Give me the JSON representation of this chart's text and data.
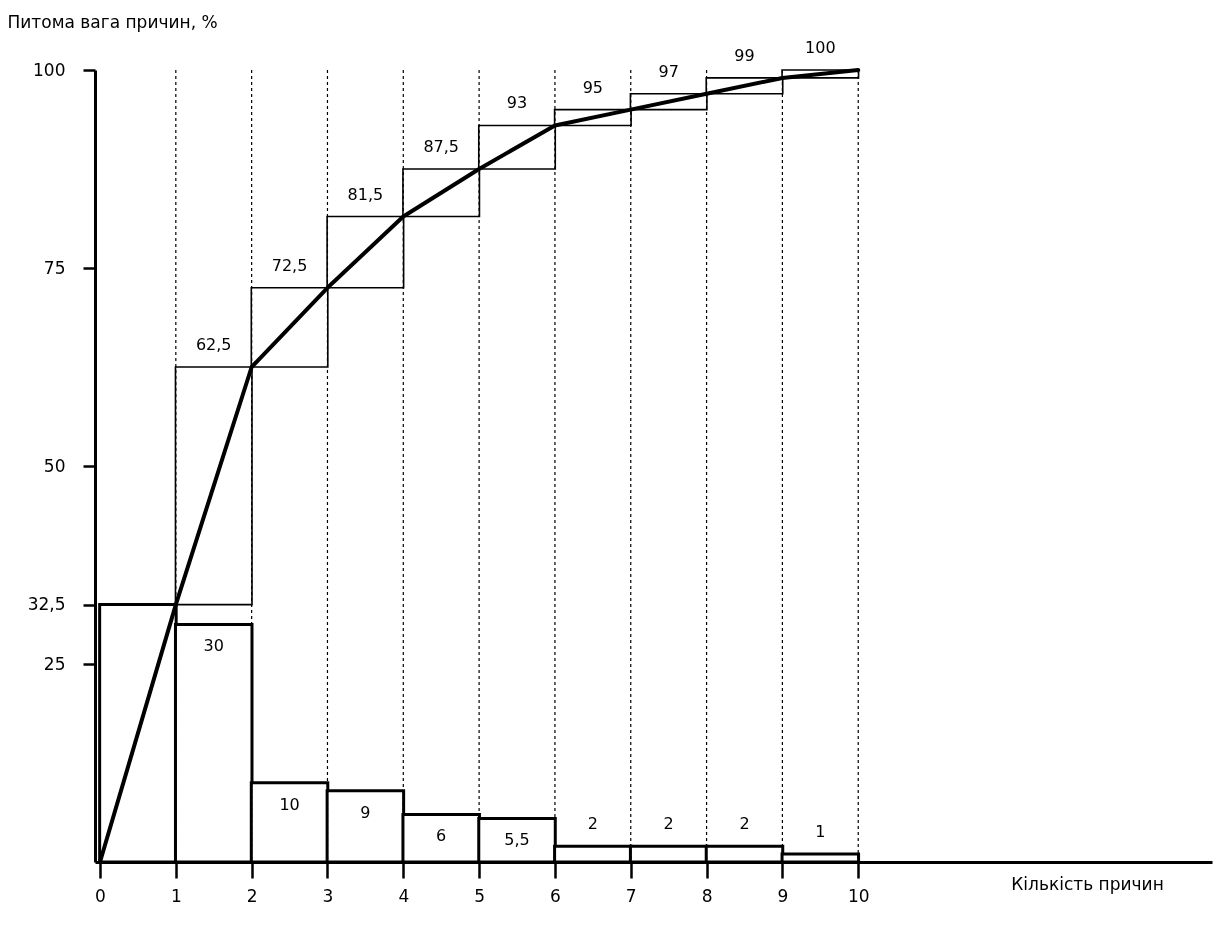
{
  "chart_data": {
    "type": "bar",
    "xlabel": "Кількість причин",
    "ylabel": "Питома вага причин, %",
    "xlim": [
      0,
      14.6
    ],
    "xticks": [
      0,
      1,
      2,
      3,
      4,
      5,
      6,
      7,
      8,
      9,
      10
    ],
    "ylim": [
      0,
      100
    ],
    "yticks": [
      25,
      {
        "value": 32.5,
        "label": "32,5"
      },
      50,
      75,
      100
    ],
    "grid": false,
    "series": [
      {
        "color": "#ffffff",
        "x": [
          0.5,
          1.5,
          2.5,
          3.5,
          4.5,
          5.5,
          6.5,
          7.5,
          8.5,
          9.5
        ],
        "values": [
          32.5,
          30,
          10,
          9,
          6,
          5.5,
          2,
          2,
          2,
          1
        ],
        "value_labels": [
          null,
          "30",
          "10",
          "9",
          "6",
          "5,5",
          "2",
          "2",
          "2",
          "1"
        ]
      },
      {
        "color": "#ffffff",
        "x": [
          1.5,
          2.5,
          3.5,
          4.5,
          5.5,
          6.5,
          7.5,
          8.5,
          9.5
        ],
        "base": [
          32.5,
          62.5,
          72.5,
          81.5,
          87.5,
          93,
          95,
          97,
          99
        ],
        "values": [
          30,
          10,
          9,
          6,
          5.5,
          2,
          2,
          2,
          1
        ],
        "value_labels": [
          "62,5",
          "72,5",
          "81,5",
          "87,5",
          "93",
          "95",
          "97",
          "99",
          "100"
        ]
      },
      {
        "type": "line",
        "color": "#000000",
        "x": [
          0,
          1,
          2,
          3,
          4,
          5,
          6,
          7,
          8,
          9,
          10
        ],
        "values": [
          0,
          32.5,
          62.5,
          72.5,
          81.5,
          87.5,
          93,
          95,
          97,
          99,
          100
        ]
      }
    ],
    "ref_lines": [
      {
        "axis": "x",
        "value": 1,
        "line_style": "dotted"
      },
      {
        "axis": "x",
        "value": 2,
        "line_style": "dotted"
      },
      {
        "axis": "x",
        "value": 3,
        "line_style": "dotted"
      },
      {
        "axis": "x",
        "value": 4,
        "line_style": "dotted"
      },
      {
        "axis": "x",
        "value": 5,
        "line_style": "dotted"
      },
      {
        "axis": "x",
        "value": 6,
        "line_style": "dotted"
      },
      {
        "axis": "x",
        "value": 7,
        "line_style": "dotted"
      },
      {
        "axis": "x",
        "value": 8,
        "line_style": "dotted"
      },
      {
        "axis": "x",
        "value": 9,
        "line_style": "dotted"
      },
      {
        "axis": "x",
        "value": 10,
        "line_style": "dotted"
      }
    ]
  }
}
